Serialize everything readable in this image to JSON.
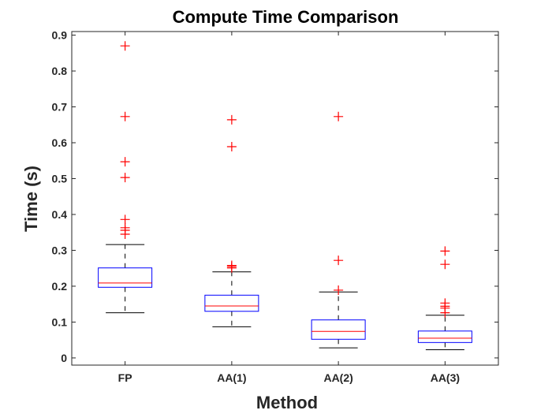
{
  "chart_data": {
    "type": "boxplot",
    "title": "Compute Time Comparison",
    "xlabel": "Method",
    "ylabel": "Time (s)",
    "ylim": [
      -0.02,
      0.91
    ],
    "yticks": [
      "0",
      "0.1",
      "0.2",
      "0.3",
      "0.4",
      "0.5",
      "0.6",
      "0.7",
      "0.8",
      "0.9"
    ],
    "ytick_values": [
      0,
      0.1,
      0.2,
      0.3,
      0.4,
      0.5,
      0.6,
      0.7,
      0.8,
      0.9
    ],
    "categories": [
      "FP",
      "AA(1)",
      "AA(2)",
      "AA(3)"
    ],
    "boxes": [
      {
        "q1": 0.197,
        "median": 0.209,
        "q3": 0.251,
        "whisker_low": 0.126,
        "whisker_high": 0.316,
        "outliers": [
          0.87,
          0.673,
          0.547,
          0.503,
          0.386,
          0.363,
          0.356,
          0.345
        ]
      },
      {
        "q1": 0.13,
        "median": 0.145,
        "q3": 0.175,
        "whisker_low": 0.087,
        "whisker_high": 0.24,
        "outliers": [
          0.664,
          0.589,
          0.258,
          0.255,
          0.251
        ]
      },
      {
        "q1": 0.052,
        "median": 0.074,
        "q3": 0.106,
        "whisker_low": 0.028,
        "whisker_high": 0.184,
        "outliers": [
          0.673,
          0.272,
          0.189
        ]
      },
      {
        "q1": 0.043,
        "median": 0.055,
        "q3": 0.075,
        "whisker_low": 0.023,
        "whisker_high": 0.119,
        "outliers": [
          0.298,
          0.261,
          0.153,
          0.144,
          0.139,
          0.126
        ]
      }
    ],
    "colors": {
      "box": "#0000ff",
      "median": "#ff0000",
      "whisker": "#000000",
      "outlier": "#ff0000"
    },
    "grid": false
  }
}
